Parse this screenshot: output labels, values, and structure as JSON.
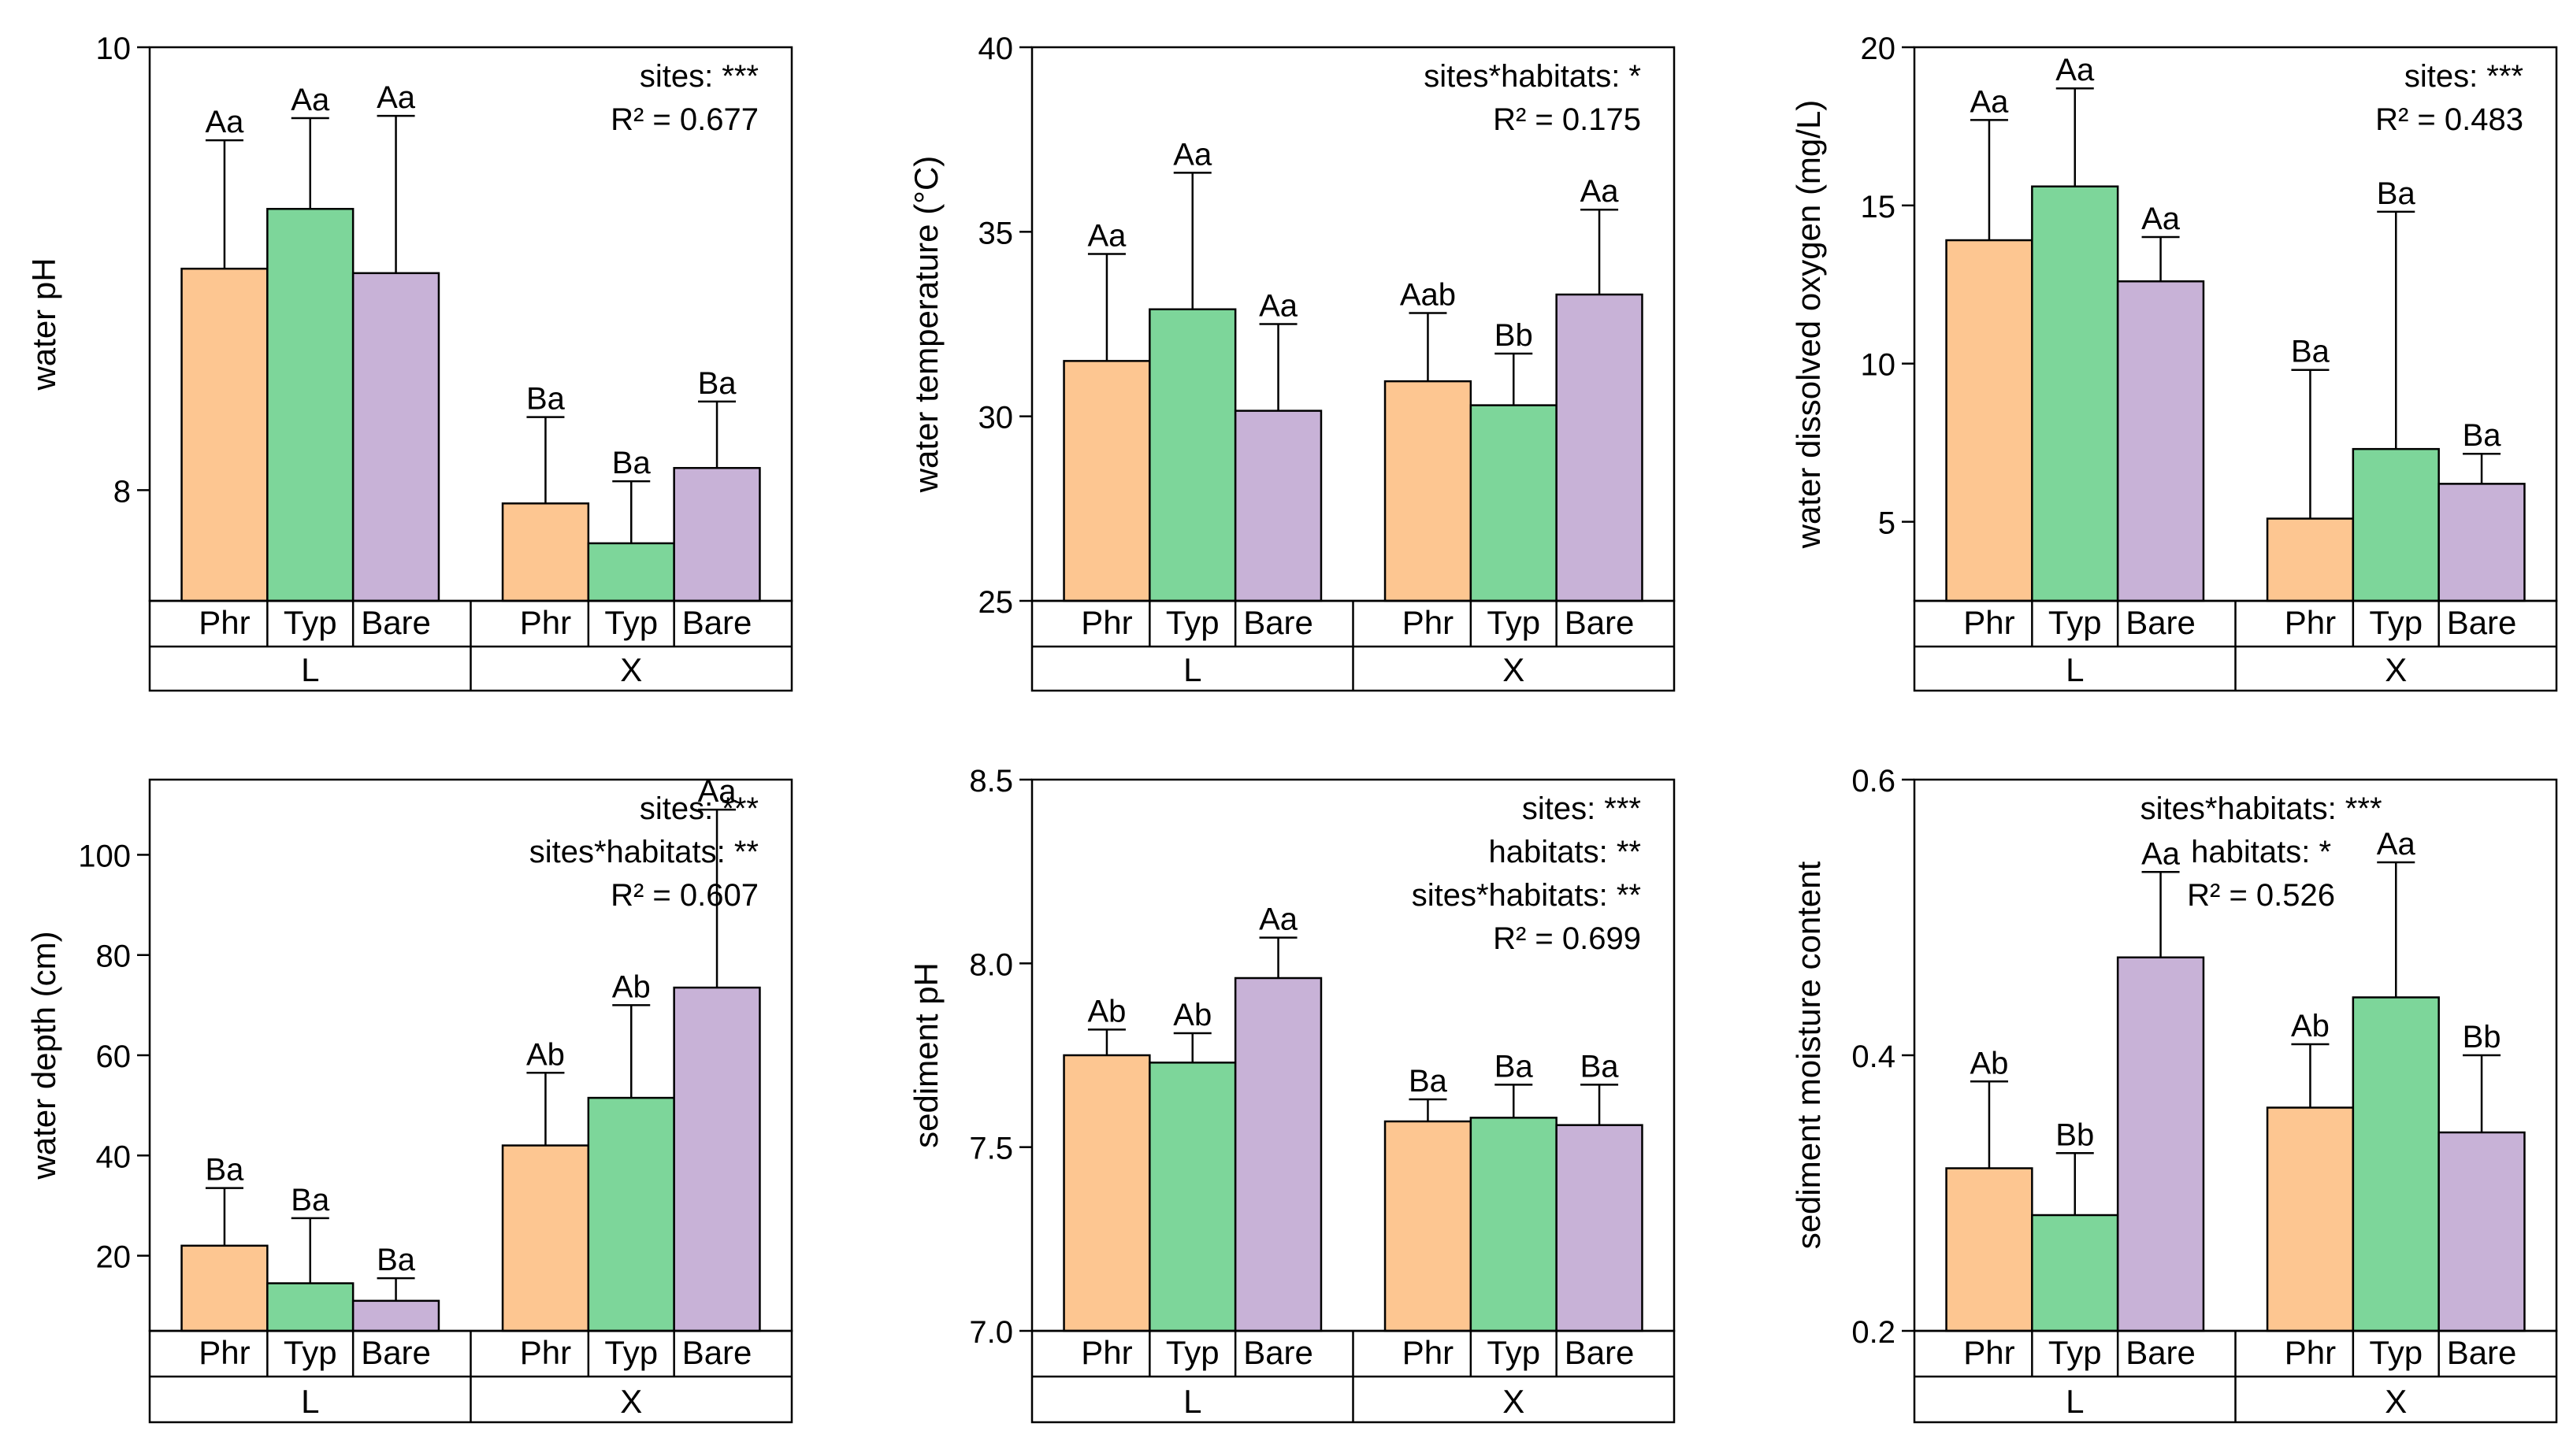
{
  "colors": {
    "Phr": "#FDC691",
    "Typ": "#7DD69A",
    "Bare": "#C8B2D7",
    "stroke": "#000000"
  },
  "chart_data": [
    {
      "type": "bar",
      "ylabel": "water pH",
      "ylim": [
        7.5,
        10
      ],
      "yticks": [
        8,
        10
      ],
      "sites": [
        "L",
        "X"
      ],
      "categories": [
        "Phr",
        "Typ",
        "Bare"
      ],
      "series": [
        {
          "site": "L",
          "values": [
            9.0,
            9.27,
            8.98
          ],
          "errors": [
            0.58,
            0.41,
            0.71
          ],
          "letters": [
            "Aa",
            "Aa",
            "Aa"
          ]
        },
        {
          "site": "X",
          "values": [
            7.94,
            7.76,
            8.1
          ],
          "errors": [
            0.39,
            0.28,
            0.3
          ],
          "letters": [
            "Ba",
            "Ba",
            "Ba"
          ]
        }
      ],
      "annotations": [
        "sites: ***",
        "R² = 0.677"
      ],
      "annotation_align": "right"
    },
    {
      "type": "bar",
      "ylabel": "water temperature (°C)",
      "ylim": [
        25,
        40
      ],
      "yticks": [
        25,
        30,
        35,
        40
      ],
      "sites": [
        "L",
        "X"
      ],
      "categories": [
        "Phr",
        "Typ",
        "Bare"
      ],
      "series": [
        {
          "site": "L",
          "values": [
            31.5,
            32.9,
            30.15
          ],
          "errors": [
            2.9,
            3.7,
            2.35
          ],
          "letters": [
            "Aa",
            "Aa",
            "Aa"
          ]
        },
        {
          "site": "X",
          "values": [
            30.95,
            30.3,
            33.3
          ],
          "errors": [
            1.85,
            1.4,
            2.3
          ],
          "letters": [
            "Aab",
            "Bb",
            "Aa"
          ]
        }
      ],
      "annotations": [
        "sites*habitats: *",
        "R² = 0.175"
      ],
      "annotation_align": "right"
    },
    {
      "type": "bar",
      "ylabel": "water dissolved oxygen (mg/L)",
      "ylim": [
        2.5,
        20
      ],
      "yticks": [
        5,
        10,
        15,
        20
      ],
      "sites": [
        "L",
        "X"
      ],
      "categories": [
        "Phr",
        "Typ",
        "Bare"
      ],
      "series": [
        {
          "site": "L",
          "values": [
            13.9,
            15.6,
            12.6
          ],
          "errors": [
            3.8,
            3.1,
            1.4
          ],
          "letters": [
            "Aa",
            "Aa",
            "Aa"
          ]
        },
        {
          "site": "X",
          "values": [
            5.1,
            7.3,
            6.2
          ],
          "errors": [
            4.7,
            7.5,
            0.95
          ],
          "letters": [
            "Ba",
            "Ba",
            "Ba"
          ]
        }
      ],
      "annotations": [
        "sites: ***",
        "R² = 0.483"
      ],
      "annotation_align": "right"
    },
    {
      "type": "bar",
      "ylabel": "water depth (cm)",
      "ylim": [
        5,
        115
      ],
      "yticks": [
        20,
        40,
        60,
        80,
        100
      ],
      "sites": [
        "L",
        "X"
      ],
      "categories": [
        "Phr",
        "Typ",
        "Bare"
      ],
      "series": [
        {
          "site": "L",
          "values": [
            22,
            14.5,
            11
          ],
          "errors": [
            11.5,
            13,
            4.5
          ],
          "letters": [
            "Ba",
            "Ba",
            "Ba"
          ]
        },
        {
          "site": "X",
          "values": [
            42,
            51.5,
            73.5
          ],
          "errors": [
            14.5,
            18.5,
            35.5
          ],
          "letters": [
            "Ab",
            "Ab",
            "Aa"
          ]
        }
      ],
      "annotations": [
        "sites: ***",
        "sites*habitats: **",
        "R² = 0.607"
      ],
      "annotation_align": "right"
    },
    {
      "type": "bar",
      "ylabel": "sediment pH",
      "ylim": [
        7.0,
        8.5
      ],
      "yticks": [
        7.0,
        7.5,
        8.0,
        8.5
      ],
      "sites": [
        "L",
        "X"
      ],
      "categories": [
        "Phr",
        "Typ",
        "Bare"
      ],
      "series": [
        {
          "site": "L",
          "values": [
            7.75,
            7.73,
            7.96
          ],
          "errors": [
            0.07,
            0.08,
            0.11
          ],
          "letters": [
            "Ab",
            "Ab",
            "Aa"
          ]
        },
        {
          "site": "X",
          "values": [
            7.57,
            7.58,
            7.56
          ],
          "errors": [
            0.06,
            0.09,
            0.11
          ],
          "letters": [
            "Ba",
            "Ba",
            "Ba"
          ]
        }
      ],
      "annotations": [
        "sites: ***",
        "habitats: **",
        "sites*habitats: **",
        "R² = 0.699"
      ],
      "annotation_align": "right"
    },
    {
      "type": "bar",
      "ylabel": "sediment moisture content",
      "ylim": [
        0.2,
        0.6
      ],
      "yticks": [
        0.2,
        0.4,
        0.6
      ],
      "sites": [
        "L",
        "X"
      ],
      "categories": [
        "Phr",
        "Typ",
        "Bare"
      ],
      "series": [
        {
          "site": "L",
          "values": [
            0.318,
            0.284,
            0.471
          ],
          "errors": [
            0.063,
            0.045,
            0.062
          ],
          "letters": [
            "Ab",
            "Bb",
            "Aa"
          ]
        },
        {
          "site": "X",
          "values": [
            0.362,
            0.442,
            0.344
          ],
          "errors": [
            0.046,
            0.098,
            0.056
          ],
          "letters": [
            "Ab",
            "Aa",
            "Bb"
          ]
        }
      ],
      "annotations": [
        "sites*habitats: ***",
        "habitats: *",
        "R² = 0.526"
      ],
      "annotation_align": "center"
    }
  ]
}
